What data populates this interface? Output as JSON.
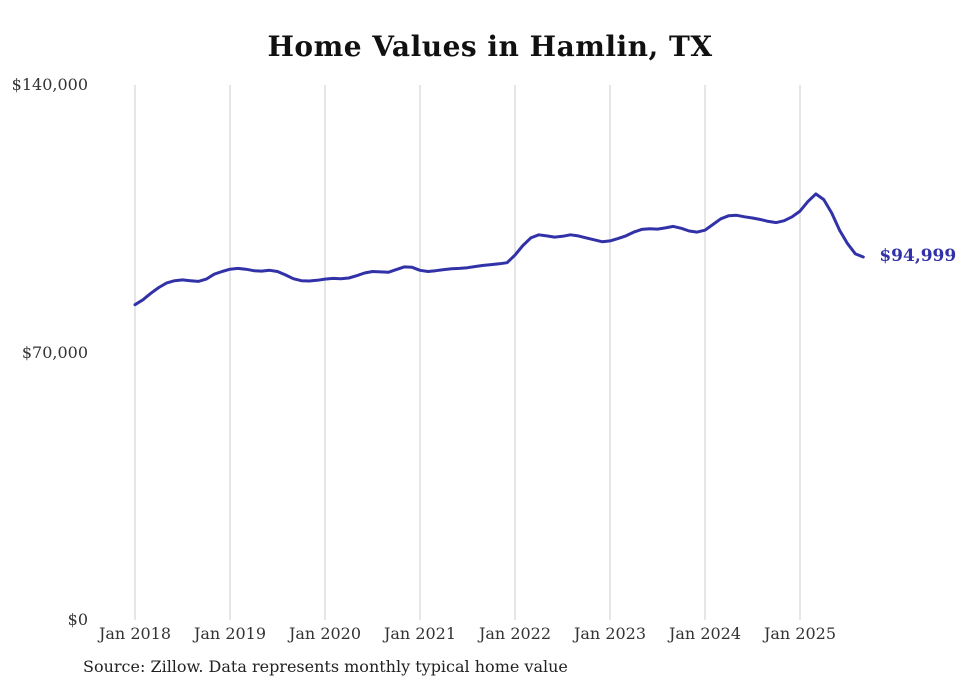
{
  "title": "Home Values in Hamlin, TX",
  "source_note": "Source: Zillow. Data represents monthly typical home value",
  "end_label": "$94,999",
  "colors": {
    "line": "#3232a8",
    "grid": "#cccccc",
    "axis_text": "#333333",
    "title_text": "#111111",
    "end_label_text": "#3232a8",
    "background": "#ffffff"
  },
  "chart_data": {
    "type": "line",
    "title": "Home Values in Hamlin, TX",
    "x_start": "2018-01",
    "x_end": "2025-09",
    "x_interval": "monthly",
    "x_ticks": [
      "Jan 2018",
      "Jan 2019",
      "Jan 2020",
      "Jan 2021",
      "Jan 2022",
      "Jan 2023",
      "Jan 2024",
      "Jan 2025"
    ],
    "y_ticks": [
      {
        "label": "$140,000",
        "value": 140000
      },
      {
        "label": "$70,000",
        "value": 70000
      },
      {
        "label": "$0",
        "value": 0
      }
    ],
    "ylim": [
      0,
      140000
    ],
    "grid": "vertical",
    "legend": "none",
    "ylabel": "",
    "xlabel": "",
    "end_value": 94999,
    "end_value_label": "$94,999",
    "values": [
      82500,
      83800,
      85500,
      87000,
      88200,
      88800,
      89000,
      88800,
      88600,
      89200,
      90500,
      91200,
      91800,
      92000,
      91800,
      91400,
      91300,
      91500,
      91200,
      90300,
      89300,
      88800,
      88700,
      88900,
      89200,
      89400,
      89300,
      89500,
      90100,
      90800,
      91200,
      91100,
      91000,
      91700,
      92400,
      92300,
      91500,
      91200,
      91400,
      91700,
      91900,
      92000,
      92200,
      92500,
      92800,
      93000,
      93200,
      93500,
      95500,
      98000,
      100000,
      100800,
      100500,
      100200,
      100400,
      100800,
      100500,
      100000,
      99500,
      99000,
      99200,
      99800,
      100500,
      101500,
      102200,
      102400,
      102300,
      102600,
      103000,
      102500,
      101800,
      101500,
      102000,
      103500,
      105000,
      105800,
      105900,
      105500,
      105200,
      104800,
      104300,
      104000,
      104500,
      105500,
      107000,
      109500,
      111500,
      110000,
      106500,
      102000,
      98500,
      95800,
      94999
    ]
  }
}
